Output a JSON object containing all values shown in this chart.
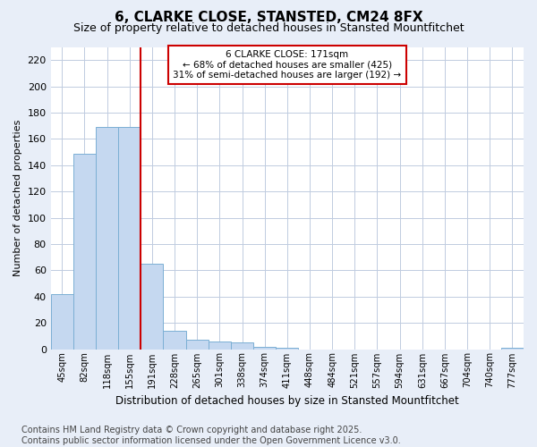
{
  "title": "6, CLARKE CLOSE, STANSTED, CM24 8FX",
  "subtitle": "Size of property relative to detached houses in Stansted Mountfitchet",
  "xlabel": "Distribution of detached houses by size in Stansted Mountfitchet",
  "ylabel": "Number of detached properties",
  "footnote": "Contains HM Land Registry data © Crown copyright and database right 2025.\nContains public sector information licensed under the Open Government Licence v3.0.",
  "bar_labels": [
    "45sqm",
    "82sqm",
    "118sqm",
    "155sqm",
    "191sqm",
    "228sqm",
    "265sqm",
    "301sqm",
    "338sqm",
    "374sqm",
    "411sqm",
    "448sqm",
    "484sqm",
    "521sqm",
    "557sqm",
    "594sqm",
    "631sqm",
    "667sqm",
    "704sqm",
    "740sqm",
    "777sqm"
  ],
  "bar_values": [
    42,
    149,
    169,
    169,
    65,
    14,
    7,
    6,
    5,
    2,
    1,
    0,
    0,
    0,
    0,
    0,
    0,
    0,
    0,
    0,
    1
  ],
  "bar_color": "#c5d8f0",
  "bar_edge_color": "#7bafd4",
  "property_label": "6 CLARKE CLOSE: 171sqm",
  "annotation_line1": "← 68% of detached houses are smaller (425)",
  "annotation_line2": "31% of semi-detached houses are larger (192) →",
  "vline_color": "#cc0000",
  "vline_x_index": 3.5,
  "annotation_box_color": "#ffffff",
  "annotation_box_edge": "#cc0000",
  "ylim": [
    0,
    230
  ],
  "yticks": [
    0,
    20,
    40,
    60,
    80,
    100,
    120,
    140,
    160,
    180,
    200,
    220
  ],
  "bg_color": "#e8eef8",
  "plot_bg_color": "#ffffff",
  "grid_color": "#c0cce0",
  "title_fontsize": 11,
  "subtitle_fontsize": 9,
  "footnote_fontsize": 7
}
